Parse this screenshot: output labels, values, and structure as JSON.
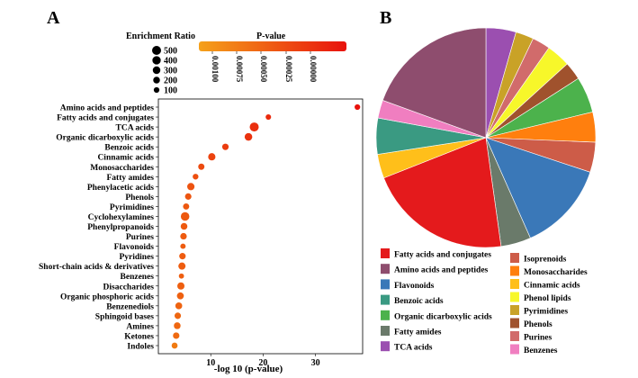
{
  "panels": {
    "a_label": "A",
    "b_label": "B"
  },
  "chart_data": [
    {
      "type": "scatter",
      "xlabel": "-log 10 (p-value)",
      "xlim": [
        0,
        39
      ],
      "xticks": [
        10,
        20,
        30
      ],
      "size_legend": {
        "title": "Enrichment Ratio",
        "values": [
          500,
          400,
          300,
          200,
          100
        ]
      },
      "color_legend": {
        "title": "P-value",
        "ticks": [
          "0.00100",
          "0.00075",
          "0.00050",
          "0.00025",
          "0.00000"
        ],
        "low_color": "#f5a11a",
        "high_color": "#e8120c"
      },
      "categories": [
        "Amino acids and peptides",
        "Fatty acids and conjugates",
        "TCA acids",
        "Organic dicarboxylic acids",
        "Benzoic acids",
        "Cinnamic acids",
        "Monosaccharides",
        "Fatty amides",
        "Phenylacetic acids",
        "Phenols",
        "Pyrimidines",
        "Cyclohexylamines",
        "Phenylpropanoids",
        "Purines",
        "Flavonoids",
        "Pyridines",
        "Short-chain acids & derivatives",
        "Benzenes",
        "Disaccharides",
        "Organic phosphoric acids",
        "Benzenediols",
        "Sphingoid bases",
        "Amines",
        "Ketones",
        "Indoles"
      ],
      "x": [
        38.0,
        21.0,
        18.3,
        17.2,
        12.8,
        10.2,
        8.2,
        7.1,
        6.2,
        5.7,
        5.3,
        5.1,
        4.9,
        4.8,
        4.7,
        4.6,
        4.5,
        4.4,
        4.3,
        4.2,
        3.9,
        3.7,
        3.6,
        3.4,
        3.1
      ],
      "enrichment": [
        100,
        90,
        500,
        300,
        170,
        260,
        150,
        110,
        260,
        170,
        150,
        430,
        200,
        180,
        80,
        170,
        250,
        70,
        250,
        220,
        210,
        170,
        200,
        170,
        130
      ]
    },
    {
      "type": "pie",
      "labels": [
        "TCA acids",
        "Pyrimidines",
        "Purines",
        "Phenol lipids",
        "Phenols",
        "Organic dicarboxylic acids",
        "Monosaccharides",
        "Isoprenoids",
        "Flavonoids",
        "Fatty amides",
        "Fatty acids and conjugates",
        "Cinnamic acids",
        "Benzoic acids",
        "Benzenes",
        "Amino acids and peptides"
      ],
      "values": [
        5,
        3,
        3,
        4,
        3,
        6,
        5,
        5,
        15,
        5,
        24,
        4,
        6,
        3,
        22
      ],
      "colors": [
        "#9b4fb0",
        "#c9a227",
        "#d16b6b",
        "#f7f72a",
        "#a0522d",
        "#4cb24c",
        "#ff7f0e",
        "#cd5c48",
        "#3a78b8",
        "#6a7a6a",
        "#e41a1c",
        "#ffbf1a",
        "#3a9a82",
        "#f07ec0",
        "#8e4d6e"
      ],
      "legend_col1": [
        "Fatty acids and conjugates",
        "Amino acids and peptides",
        "Flavonoids",
        "Benzoic acids",
        "Organic dicarboxylic acids",
        "Fatty amides",
        "TCA acids"
      ],
      "legend_col2": [
        "Isoprenoids",
        "Monosaccharides",
        "Cinnamic acids",
        "Phenol lipids",
        "Pyrimidines",
        "Phenols",
        "Purines",
        "Benzenes"
      ]
    }
  ]
}
